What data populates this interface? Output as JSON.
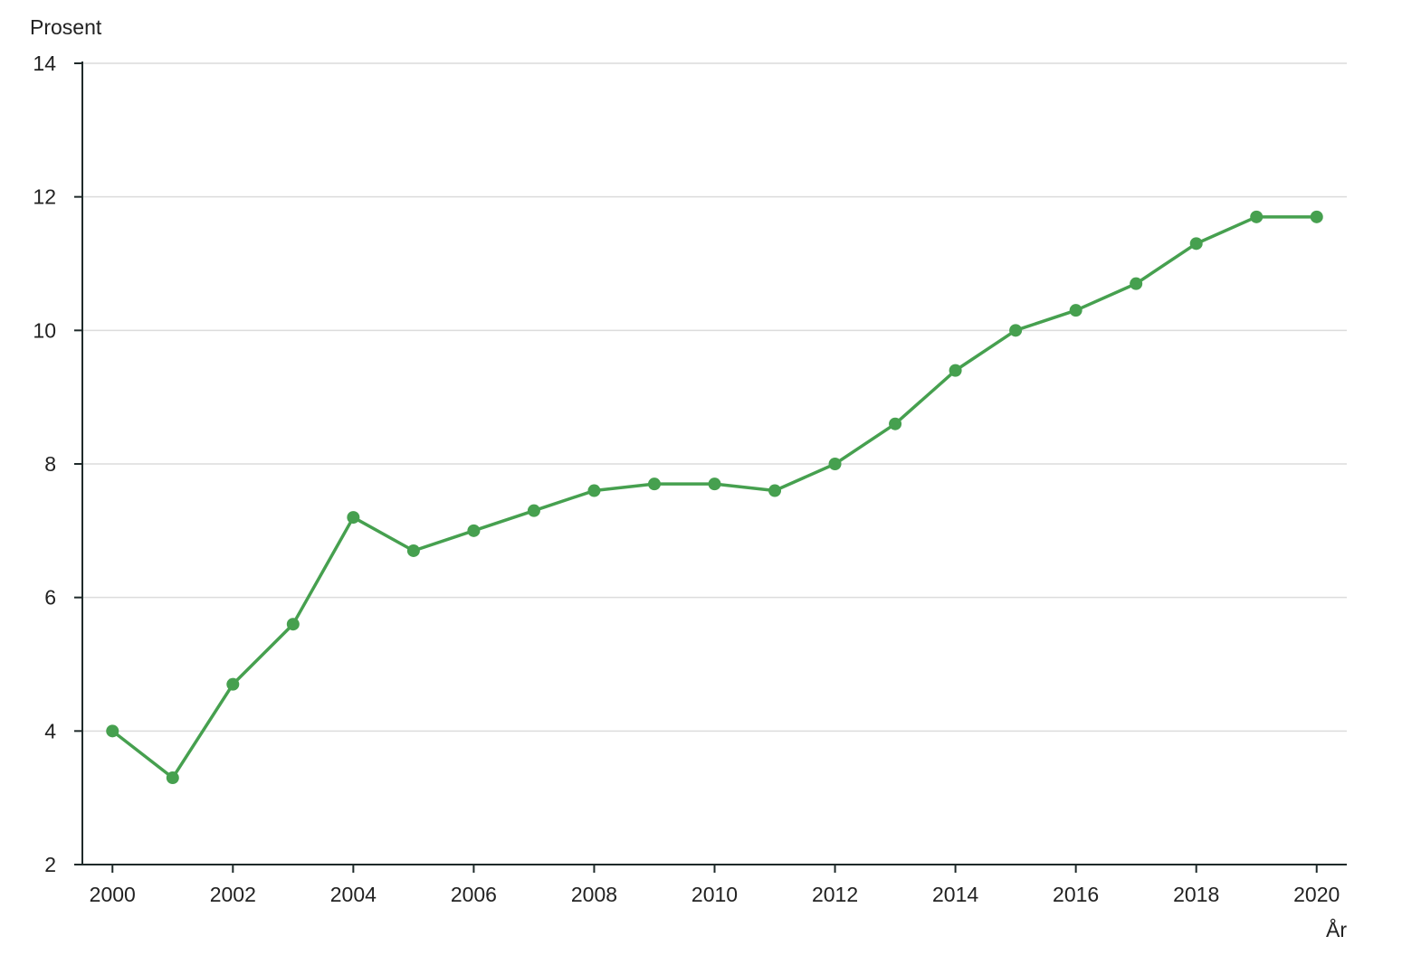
{
  "chart_data": {
    "type": "line",
    "title": "",
    "xlabel": "År",
    "ylabel": "Prosent",
    "x": [
      2000,
      2001,
      2002,
      2003,
      2004,
      2005,
      2006,
      2007,
      2008,
      2009,
      2010,
      2011,
      2012,
      2013,
      2014,
      2015,
      2016,
      2017,
      2018,
      2019,
      2020
    ],
    "series": [
      {
        "values": [
          4.0,
          3.3,
          4.7,
          5.6,
          7.2,
          6.7,
          7.0,
          7.3,
          7.6,
          7.7,
          7.7,
          7.6,
          8.0,
          8.6,
          9.4,
          10.0,
          10.3,
          10.7,
          11.3,
          11.7,
          11.7
        ],
        "color": "#46a04f"
      }
    ],
    "xlim": [
      1999.5,
      2020.5
    ],
    "ylim": [
      2,
      14
    ],
    "x_ticks": [
      "2000",
      "2002",
      "2004",
      "2006",
      "2008",
      "2010",
      "2012",
      "2014",
      "2016",
      "2018",
      "2020"
    ],
    "y_ticks": [
      "2",
      "4",
      "6",
      "8",
      "10",
      "12",
      "14"
    ],
    "grid": "horizontal",
    "legend": "none",
    "markers": true
  }
}
